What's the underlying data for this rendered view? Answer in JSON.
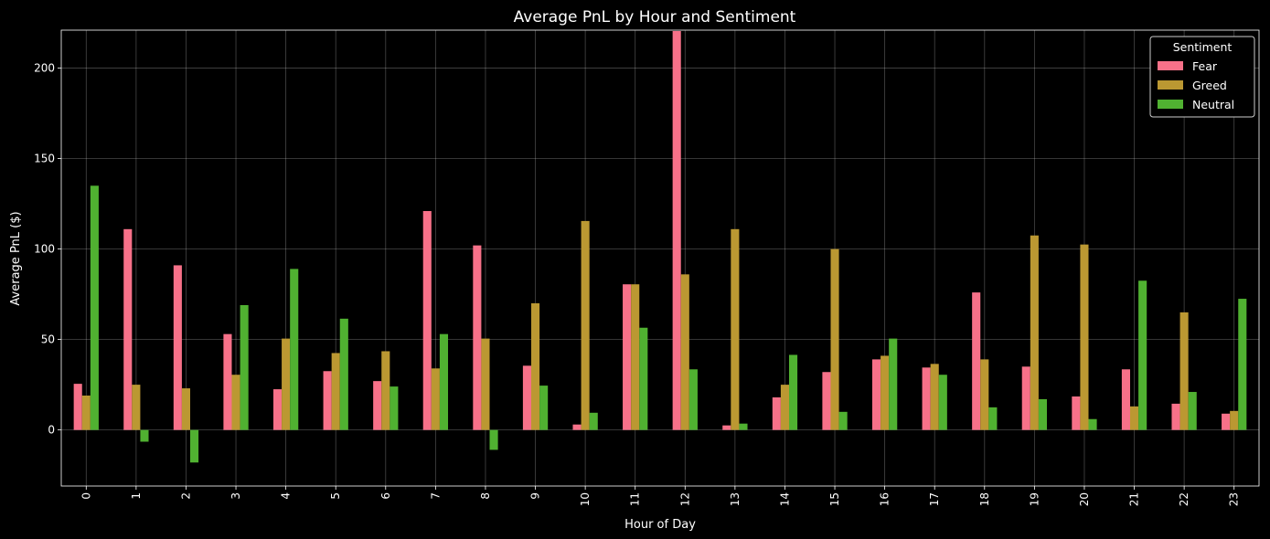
{
  "chart_data": {
    "type": "bar",
    "title": "Average PnL by Hour and Sentiment",
    "xlabel": "Hour of Day",
    "ylabel": "Average PnL ($)",
    "categories": [
      "0",
      "1",
      "2",
      "3",
      "4",
      "5",
      "6",
      "7",
      "8",
      "9",
      "10",
      "11",
      "12",
      "13",
      "14",
      "15",
      "16",
      "17",
      "18",
      "19",
      "20",
      "21",
      "22",
      "23"
    ],
    "series": [
      {
        "name": "Fear",
        "color": "#f77189",
        "values": [
          25.5,
          111,
          91,
          53,
          22.5,
          32.5,
          27,
          121,
          102,
          35.5,
          3,
          80.5,
          220.5,
          2.5,
          18,
          32,
          39,
          34.5,
          76,
          35,
          18.5,
          33.5,
          14.5,
          9
        ]
      },
      {
        "name": "Greed",
        "color": "#bb9832",
        "values": [
          19,
          25,
          23,
          30.5,
          50.5,
          42.5,
          43.5,
          34,
          50.5,
          70,
          115.5,
          80.5,
          86,
          111,
          25,
          100,
          41,
          36.5,
          39,
          107.5,
          102.5,
          13,
          65,
          10.5
        ]
      },
      {
        "name": "Neutral",
        "color": "#50b131",
        "values": [
          135,
          -6.5,
          -18,
          69,
          89,
          61.5,
          24,
          53,
          -11,
          24.5,
          9.5,
          56.5,
          33.5,
          3.5,
          41.5,
          10,
          50.5,
          30.5,
          12.5,
          17,
          6,
          82.5,
          21,
          72.5
        ]
      }
    ],
    "ylim": [
      -31,
      221
    ],
    "yticks": [
      0,
      50,
      100,
      150,
      200
    ],
    "grid": true,
    "legend": {
      "title": "Sentiment",
      "placement": "top-right"
    }
  }
}
